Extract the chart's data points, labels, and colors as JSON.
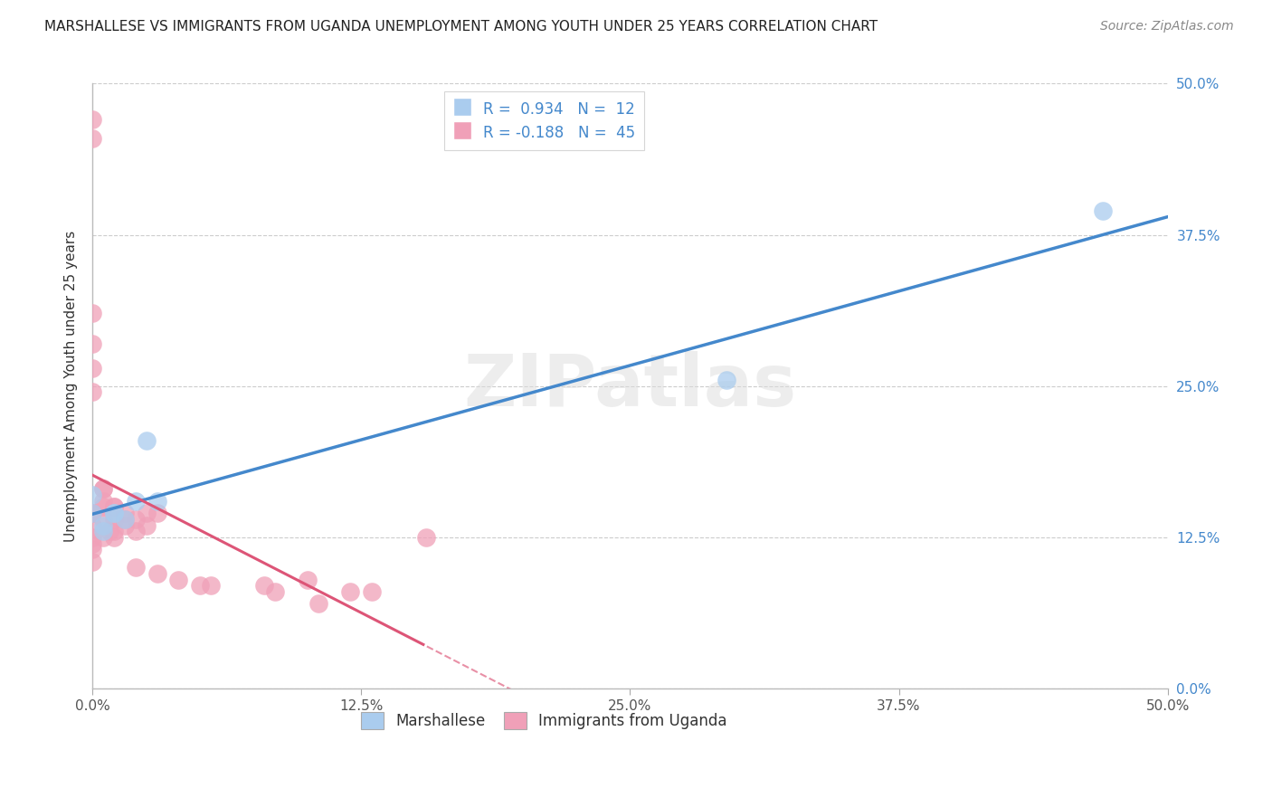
{
  "title": "MARSHALLESE VS IMMIGRANTS FROM UGANDA UNEMPLOYMENT AMONG YOUTH UNDER 25 YEARS CORRELATION CHART",
  "source": "Source: ZipAtlas.com",
  "ylabel": "Unemployment Among Youth under 25 years",
  "legend_label1": "Marshallese",
  "legend_label2": "Immigrants from Uganda",
  "r1": 0.934,
  "n1": 12,
  "r2": -0.188,
  "n2": 45,
  "color_blue": "#aaccee",
  "color_pink": "#f0a0b8",
  "line_color_blue": "#4488cc",
  "line_color_pink": "#dd5577",
  "watermark": "ZIPatlas",
  "xlim": [
    0.0,
    0.5
  ],
  "ylim": [
    0.0,
    0.5
  ],
  "xtick_vals": [
    0.0,
    0.125,
    0.25,
    0.375,
    0.5
  ],
  "ytick_vals": [
    0.0,
    0.125,
    0.25,
    0.375,
    0.5
  ],
  "tick_labels": [
    "0.0%",
    "12.5%",
    "25.0%",
    "37.5%",
    "50.0%"
  ],
  "marshallese_x": [
    0.0,
    0.0,
    0.005,
    0.005,
    0.01,
    0.01,
    0.015,
    0.02,
    0.025,
    0.03,
    0.295,
    0.47
  ],
  "marshallese_y": [
    0.145,
    0.16,
    0.135,
    0.13,
    0.145,
    0.145,
    0.14,
    0.155,
    0.205,
    0.155,
    0.255,
    0.395
  ],
  "uganda_x": [
    0.0,
    0.0,
    0.0,
    0.0,
    0.0,
    0.0,
    0.0,
    0.0,
    0.0,
    0.0,
    0.0,
    0.0,
    0.0,
    0.005,
    0.005,
    0.005,
    0.005,
    0.005,
    0.005,
    0.008,
    0.01,
    0.01,
    0.01,
    0.01,
    0.01,
    0.015,
    0.015,
    0.015,
    0.02,
    0.02,
    0.02,
    0.025,
    0.025,
    0.03,
    0.03,
    0.04,
    0.05,
    0.055,
    0.08,
    0.085,
    0.1,
    0.105,
    0.12,
    0.13,
    0.155
  ],
  "uganda_y": [
    0.455,
    0.47,
    0.31,
    0.285,
    0.265,
    0.245,
    0.145,
    0.145,
    0.135,
    0.125,
    0.12,
    0.115,
    0.105,
    0.165,
    0.165,
    0.155,
    0.15,
    0.14,
    0.125,
    0.13,
    0.15,
    0.15,
    0.14,
    0.13,
    0.125,
    0.145,
    0.14,
    0.135,
    0.14,
    0.13,
    0.1,
    0.145,
    0.135,
    0.145,
    0.095,
    0.09,
    0.085,
    0.085,
    0.085,
    0.08,
    0.09,
    0.07,
    0.08,
    0.08,
    0.125
  ],
  "title_fontsize": 11,
  "axis_label_fontsize": 11,
  "tick_fontsize": 11,
  "source_fontsize": 10,
  "legend_fontsize": 12
}
